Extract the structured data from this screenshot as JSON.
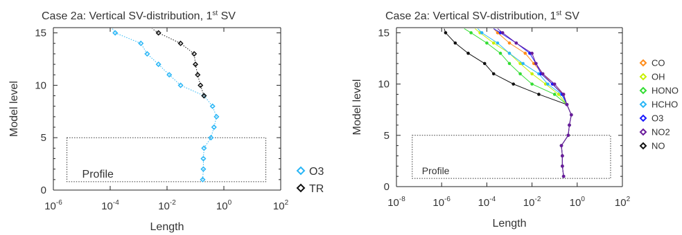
{
  "colors": {
    "CO": "#ff8c1a",
    "OH": "#c8f000",
    "HONO": "#33dd33",
    "HCHO": "#29b6f6",
    "O3": "#1a1aff",
    "NO2": "#6a1b9a",
    "NO": "#111111",
    "O3_left": "#29b6f6",
    "TR": "#111111"
  },
  "chart_data": [
    {
      "type": "line",
      "title_main": "Case 2a: Vertical SV-distribution, 1",
      "title_sup": "st",
      "title_end": " SV",
      "xlabel": "Length",
      "ylabel": "Model level",
      "x_scale": "log",
      "xlim": [
        1e-06,
        100
      ],
      "ylim": [
        0,
        15.5
      ],
      "x_ticks": [
        {
          "v": 1e-06,
          "b": "10",
          "e": "-6"
        },
        {
          "v": 0.0001,
          "b": "10",
          "e": "-4"
        },
        {
          "v": 0.01,
          "b": "10",
          "e": "-2"
        },
        {
          "v": 1,
          "b": "10",
          "e": "0"
        },
        {
          "v": 100,
          "b": "10",
          "e": "2"
        }
      ],
      "y_ticks": [
        0,
        5,
        10,
        15
      ],
      "annotation": {
        "text": "Profile",
        "box": {
          "x": [
            3e-06,
            30
          ],
          "y": [
            0.8,
            5
          ]
        }
      },
      "legend": [
        "O3",
        "TR"
      ],
      "series": [
        {
          "name": "O3",
          "color_key": "O3_left",
          "dotted": true,
          "points": [
            [
              0.18,
              1
            ],
            [
              0.19,
              2
            ],
            [
              0.19,
              3
            ],
            [
              0.2,
              4
            ],
            [
              0.35,
              5
            ],
            [
              0.45,
              6
            ],
            [
              0.55,
              7
            ],
            [
              0.4,
              8
            ],
            [
              0.2,
              9
            ],
            [
              0.03,
              10
            ],
            [
              0.012,
              11
            ],
            [
              0.005,
              12
            ],
            [
              0.002,
              13
            ],
            [
              0.0012,
              14
            ],
            [
              0.00015,
              15
            ],
            [
              0.00012,
              15.4
            ]
          ]
        },
        {
          "name": "TR",
          "color_key": "TR",
          "dotted": true,
          "points": [
            [
              0.2,
              9
            ],
            [
              0.15,
              10
            ],
            [
              0.12,
              11
            ],
            [
              0.1,
              12
            ],
            [
              0.09,
              13
            ],
            [
              0.03,
              14
            ],
            [
              0.005,
              15
            ],
            [
              0.003,
              15.4
            ]
          ]
        }
      ]
    },
    {
      "type": "line",
      "title_main": "Case 2a: Vertical SV-distribution, 1",
      "title_sup": "st",
      "title_end": " SV",
      "xlabel": "Length",
      "ylabel": "Model level",
      "x_scale": "log",
      "xlim": [
        1e-08,
        100
      ],
      "ylim": [
        0,
        15.5
      ],
      "x_ticks": [
        {
          "v": 1e-08,
          "b": "10",
          "e": "-8"
        },
        {
          "v": 1e-06,
          "b": "10",
          "e": "-6"
        },
        {
          "v": 0.0001,
          "b": "10",
          "e": "-4"
        },
        {
          "v": 0.01,
          "b": "10",
          "e": "-2"
        },
        {
          "v": 1,
          "b": "10",
          "e": "0"
        },
        {
          "v": 100,
          "b": "10",
          "e": "2"
        }
      ],
      "y_ticks": [
        0,
        5,
        10,
        15
      ],
      "annotation": {
        "text": "Profile",
        "box": {
          "x": [
            5e-08,
            30
          ],
          "y": [
            0.8,
            5
          ]
        }
      },
      "legend": [
        "CO",
        "OH",
        "HONO",
        "HCHO",
        "O3",
        "NO2",
        "NO"
      ],
      "series": [
        {
          "name": "NO",
          "color_key": "NO",
          "dotted": false,
          "points": [
            [
              0.25,
              1
            ],
            [
              0.22,
              2
            ],
            [
              0.22,
              3
            ],
            [
              0.2,
              4
            ],
            [
              0.4,
              5
            ],
            [
              0.45,
              6
            ],
            [
              0.55,
              7
            ],
            [
              0.35,
              8
            ],
            [
              0.02,
              9
            ],
            [
              0.0015,
              10
            ],
            [
              0.0002,
              11
            ],
            [
              8e-05,
              12
            ],
            [
              1.5e-05,
              13
            ],
            [
              4e-06,
              14
            ],
            [
              1.5e-06,
              15
            ],
            [
              1.3e-06,
              15.4
            ]
          ]
        },
        {
          "name": "HONO",
          "color_key": "HONO",
          "dotted": false,
          "points": [
            [
              0.25,
              1
            ],
            [
              0.22,
              2
            ],
            [
              0.22,
              3
            ],
            [
              0.2,
              4
            ],
            [
              0.4,
              5
            ],
            [
              0.45,
              6
            ],
            [
              0.55,
              7
            ],
            [
              0.35,
              8
            ],
            [
              0.1,
              9
            ],
            [
              0.01,
              10
            ],
            [
              0.003,
              11
            ],
            [
              0.001,
              12
            ],
            [
              0.0004,
              13
            ],
            [
              0.0001,
              14
            ],
            [
              2e-05,
              15
            ],
            [
              1e-05,
              15.4
            ]
          ]
        },
        {
          "name": "OH",
          "color_key": "OH",
          "dotted": false,
          "points": [
            [
              0.25,
              1
            ],
            [
              0.22,
              2
            ],
            [
              0.22,
              3
            ],
            [
              0.2,
              4
            ],
            [
              0.4,
              5
            ],
            [
              0.45,
              6
            ],
            [
              0.55,
              7
            ],
            [
              0.35,
              8
            ],
            [
              0.15,
              9
            ],
            [
              0.04,
              10
            ],
            [
              0.01,
              11
            ],
            [
              0.003,
              12
            ],
            [
              0.001,
              13
            ],
            [
              0.0002,
              14
            ],
            [
              5e-05,
              15
            ],
            [
              3e-05,
              15.4
            ]
          ]
        },
        {
          "name": "HCHO",
          "color_key": "HCHO",
          "dotted": false,
          "points": [
            [
              0.25,
              1
            ],
            [
              0.22,
              2
            ],
            [
              0.22,
              3
            ],
            [
              0.2,
              4
            ],
            [
              0.4,
              5
            ],
            [
              0.45,
              6
            ],
            [
              0.55,
              7
            ],
            [
              0.35,
              8
            ],
            [
              0.2,
              9
            ],
            [
              0.05,
              10
            ],
            [
              0.02,
              11
            ],
            [
              0.004,
              12
            ],
            [
              0.001,
              13
            ],
            [
              0.0003,
              14
            ],
            [
              6e-05,
              15
            ],
            [
              4e-05,
              15.4
            ]
          ]
        },
        {
          "name": "CO",
          "color_key": "CO",
          "dotted": false,
          "points": [
            [
              0.25,
              1
            ],
            [
              0.22,
              2
            ],
            [
              0.22,
              3
            ],
            [
              0.2,
              4
            ],
            [
              0.4,
              5
            ],
            [
              0.45,
              6
            ],
            [
              0.55,
              7
            ],
            [
              0.35,
              8
            ],
            [
              0.25,
              9
            ],
            [
              0.08,
              10
            ],
            [
              0.03,
              11
            ],
            [
              0.012,
              12
            ],
            [
              0.005,
              13
            ],
            [
              0.001,
              14
            ],
            [
              0.0003,
              15
            ],
            [
              0.0002,
              15.4
            ]
          ]
        },
        {
          "name": "O3",
          "color_key": "O3",
          "dotted": false,
          "points": [
            [
              0.25,
              1
            ],
            [
              0.22,
              2
            ],
            [
              0.22,
              3
            ],
            [
              0.2,
              4
            ],
            [
              0.4,
              5
            ],
            [
              0.45,
              6
            ],
            [
              0.55,
              7
            ],
            [
              0.35,
              8
            ],
            [
              0.22,
              9
            ],
            [
              0.08,
              10
            ],
            [
              0.025,
              11
            ],
            [
              0.015,
              12
            ],
            [
              0.008,
              13
            ],
            [
              0.002,
              14
            ],
            [
              0.0004,
              15
            ],
            [
              0.0002,
              15.4
            ]
          ]
        },
        {
          "name": "NO2",
          "color_key": "NO2",
          "dotted": false,
          "points": [
            [
              0.25,
              1
            ],
            [
              0.22,
              2
            ],
            [
              0.22,
              3
            ],
            [
              0.2,
              4
            ],
            [
              0.4,
              5
            ],
            [
              0.45,
              6
            ],
            [
              0.55,
              7
            ],
            [
              0.35,
              8
            ],
            [
              0.25,
              9
            ],
            [
              0.1,
              10
            ],
            [
              0.03,
              11
            ],
            [
              0.015,
              12
            ],
            [
              0.01,
              13
            ],
            [
              0.002,
              14
            ],
            [
              0.0005,
              15
            ],
            [
              0.0003,
              15.4
            ]
          ]
        }
      ]
    }
  ]
}
